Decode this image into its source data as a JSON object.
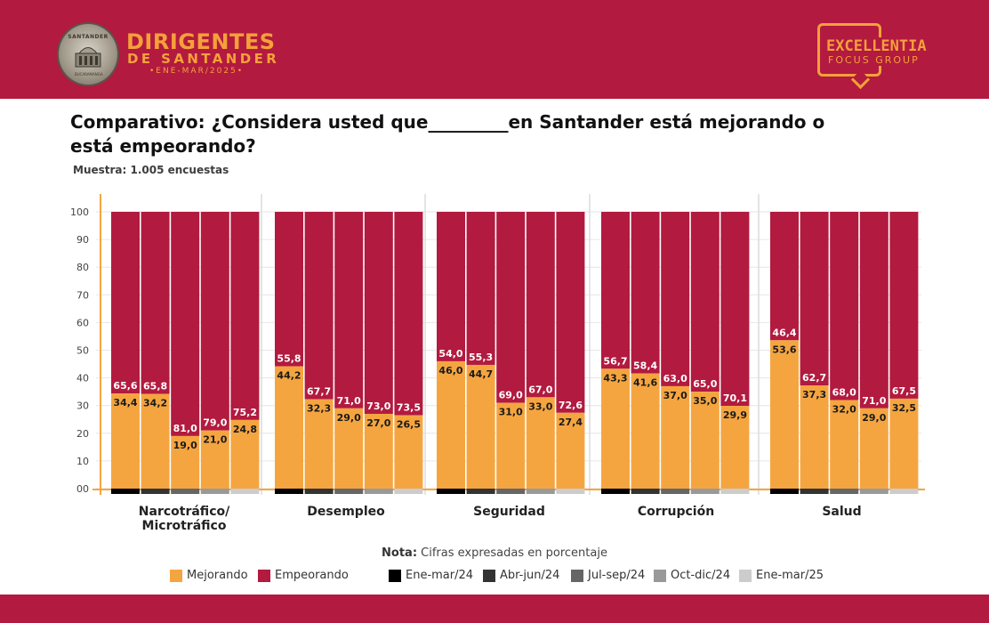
{
  "header": {
    "seal_top": "SANTANDER",
    "seal_bottom": "BUCARAMANGA",
    "brand_title": "DIRIGENTES",
    "brand_sub": "DE SANTANDER",
    "brand_date": "•ENE-MAR/2025•",
    "partner_line1": "EXCELLENTIA",
    "partner_line2": "FOCUS GROUP"
  },
  "question": "Comparativo: ¿Considera usted que_________en Santander está mejorando o está empeorando?",
  "sample": "Muestra: 1.005 encuestas",
  "note_label": "Nota:",
  "note_text": "Cifras expresadas en porcentaje",
  "colors": {
    "mejorando": "#f5a540",
    "empeorando": "#b21a3f",
    "header": "#b21a3f",
    "accent": "#f5a03a",
    "axis": "#f5a540",
    "periods": [
      "#000000",
      "#333333",
      "#666666",
      "#999999",
      "#cccccc"
    ]
  },
  "chart_data": {
    "type": "bar",
    "stacked": true,
    "ylim": [
      0,
      100
    ],
    "yticks": [
      "00",
      "10",
      "20",
      "30",
      "40",
      "50",
      "60",
      "70",
      "80",
      "90",
      "100"
    ],
    "legend": {
      "series": [
        "Mejorando",
        "Empeorando"
      ],
      "periods": [
        "Ene-mar/24",
        "Abr-jun/24",
        "Jul-sep/24",
        "Oct-dic/24",
        "Ene-mar/25"
      ]
    },
    "groups": [
      {
        "name": "Narcotráfico/\nMicrotráfico",
        "mejorando": [
          "34,4",
          "34,2",
          "19,0",
          "21,0",
          "24,8"
        ],
        "empeorando": [
          "65,6",
          "65,8",
          "81,0",
          "79,0",
          "75,2"
        ]
      },
      {
        "name": "Desempleo",
        "mejorando": [
          "44,2",
          "32,3",
          "29,0",
          "27,0",
          "26,5"
        ],
        "empeorando": [
          "55,8",
          "67,7",
          "71,0",
          "73,0",
          "73,5"
        ]
      },
      {
        "name": "Seguridad",
        "mejorando": [
          "46,0",
          "44,7",
          "31,0",
          "33,0",
          "27,4"
        ],
        "empeorando": [
          "54,0",
          "55,3",
          "69,0",
          "67,0",
          "72,6"
        ]
      },
      {
        "name": "Corrupción",
        "mejorando": [
          "43,3",
          "41,6",
          "37,0",
          "35,0",
          "29,9"
        ],
        "empeorando": [
          "56,7",
          "58,4",
          "63,0",
          "65,0",
          "70,1"
        ]
      },
      {
        "name": "Salud",
        "mejorando": [
          "53,6",
          "37,3",
          "32,0",
          "29,0",
          "32,5"
        ],
        "empeorando": [
          "46,4",
          "62,7",
          "68,0",
          "71,0",
          "67,5"
        ]
      }
    ]
  }
}
